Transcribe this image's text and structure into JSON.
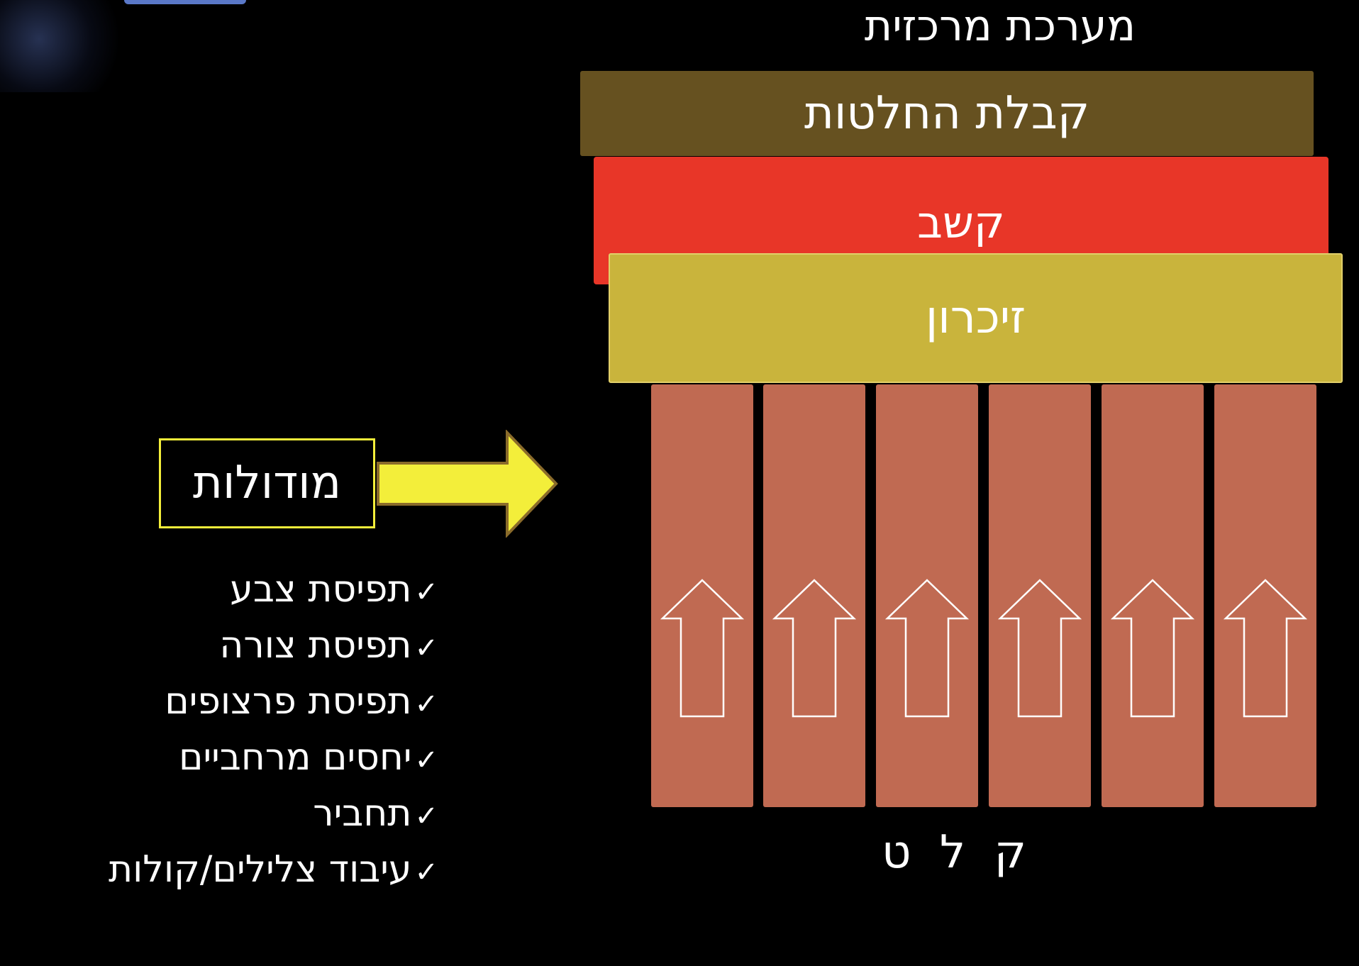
{
  "title": "מערכת מרכזית",
  "layers": {
    "decision": "קבלת החלטות",
    "attention": "קשב",
    "memory": "זיכרון"
  },
  "modules_box": "מודולות",
  "input_label": "ק ל ט",
  "check_mark": "✓",
  "modules": [
    "תפיסת צבע",
    "תפיסת צורה",
    "תפיסת פרצופים",
    "יחסים מרחביים",
    "תחביר",
    "עיבוד צלילים/קולות"
  ],
  "colors": {
    "background": "#000000",
    "decision_layer": "#665120",
    "attention_layer": "#e83628",
    "memory_layer": "#c9b43c",
    "module_column": "#c06a52",
    "pointer_arrow": "#f3ee3a"
  }
}
